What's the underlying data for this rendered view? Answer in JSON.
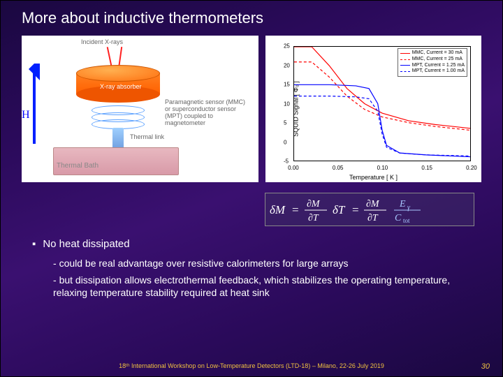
{
  "title": "More about inductive thermometers",
  "left_diagram": {
    "incident_label": "Incident X-rays",
    "absorber_label": "X-ray absorber",
    "sensor_label": "Paramagnetic sensor (MMC) or superconductor sensor (MPT) coupled to magnetometer",
    "thermal_link_label": "Thermal link",
    "bath_label": "Thermal Bath",
    "H_label": "H",
    "colors": {
      "absorber": "#ff7010",
      "coil": "#5aa0ff",
      "bath": "#d89aa8",
      "arrow": "#0020ff",
      "xray": "#ff2020"
    }
  },
  "right_chart": {
    "type": "line",
    "xlabel": "Temperature  [ K ]",
    "ylabel": "SQUID Signal  [ Φ₀ ]",
    "xlim": [
      0.0,
      0.2
    ],
    "xtick_step": 0.05,
    "xtick_labels": [
      "0.00",
      "0.05",
      "0.10",
      "0.15",
      "0.20"
    ],
    "ylim": [
      -5,
      25
    ],
    "ytick_step": 5,
    "ytick_labels": [
      "-5",
      "0",
      "5",
      "10",
      "15",
      "20",
      "25"
    ],
    "legend": [
      {
        "label": "MMC,  Current = 30 mA",
        "color": "#ff0000",
        "dash": "solid"
      },
      {
        "label": "MMC,  Current = 25 mA",
        "color": "#ff0000",
        "dash": "dashed"
      },
      {
        "label": "MPT,  Current = 1.25 mA",
        "color": "#0000ff",
        "dash": "solid"
      },
      {
        "label": "MPT,  Current = 1.00 mA",
        "color": "#0000ff",
        "dash": "dashed"
      }
    ],
    "series": {
      "mmc30": [
        [
          0.0,
          25
        ],
        [
          0.02,
          25
        ],
        [
          0.04,
          20
        ],
        [
          0.06,
          14
        ],
        [
          0.08,
          10
        ],
        [
          0.1,
          7.5
        ],
        [
          0.13,
          5.5
        ],
        [
          0.16,
          4.5
        ],
        [
          0.2,
          3.5
        ]
      ],
      "mmc25": [
        [
          0.0,
          21
        ],
        [
          0.02,
          21
        ],
        [
          0.04,
          17
        ],
        [
          0.06,
          12
        ],
        [
          0.08,
          8.5
        ],
        [
          0.1,
          6.5
        ],
        [
          0.13,
          5
        ],
        [
          0.16,
          4
        ],
        [
          0.2,
          3
        ]
      ],
      "mpt125": [
        [
          0.0,
          15
        ],
        [
          0.04,
          15
        ],
        [
          0.07,
          14.7
        ],
        [
          0.085,
          14
        ],
        [
          0.095,
          10
        ],
        [
          0.1,
          3
        ],
        [
          0.105,
          -1
        ],
        [
          0.12,
          -3
        ],
        [
          0.15,
          -3.5
        ],
        [
          0.2,
          -4
        ]
      ],
      "mpt100": [
        [
          0.0,
          12
        ],
        [
          0.04,
          12
        ],
        [
          0.07,
          11.8
        ],
        [
          0.085,
          11.3
        ],
        [
          0.095,
          8
        ],
        [
          0.1,
          2
        ],
        [
          0.105,
          -1.5
        ],
        [
          0.12,
          -3
        ],
        [
          0.15,
          -3.5
        ],
        [
          0.2,
          -3.8
        ]
      ]
    },
    "background_color": "#ffffff",
    "line_width": 1.2
  },
  "equation": {
    "text": "δM = (∂M/∂T) δT = (∂M/∂T) (Eᵧ / Cₜₒₜ)"
  },
  "bullets": {
    "b1": "No heat dissipated",
    "sub1": "could be real advantage over resistive calorimeters for large arrays",
    "sub2": "but dissipation allows electrothermal feedback, which stabilizes the operating temperature, relaxing temperature stability required at heat sink"
  },
  "footer": "18ᵗʰ International Workshop on Low-Temperature Detectors (LTD-18) – Milano, 22-26 July 2019",
  "page": "30"
}
